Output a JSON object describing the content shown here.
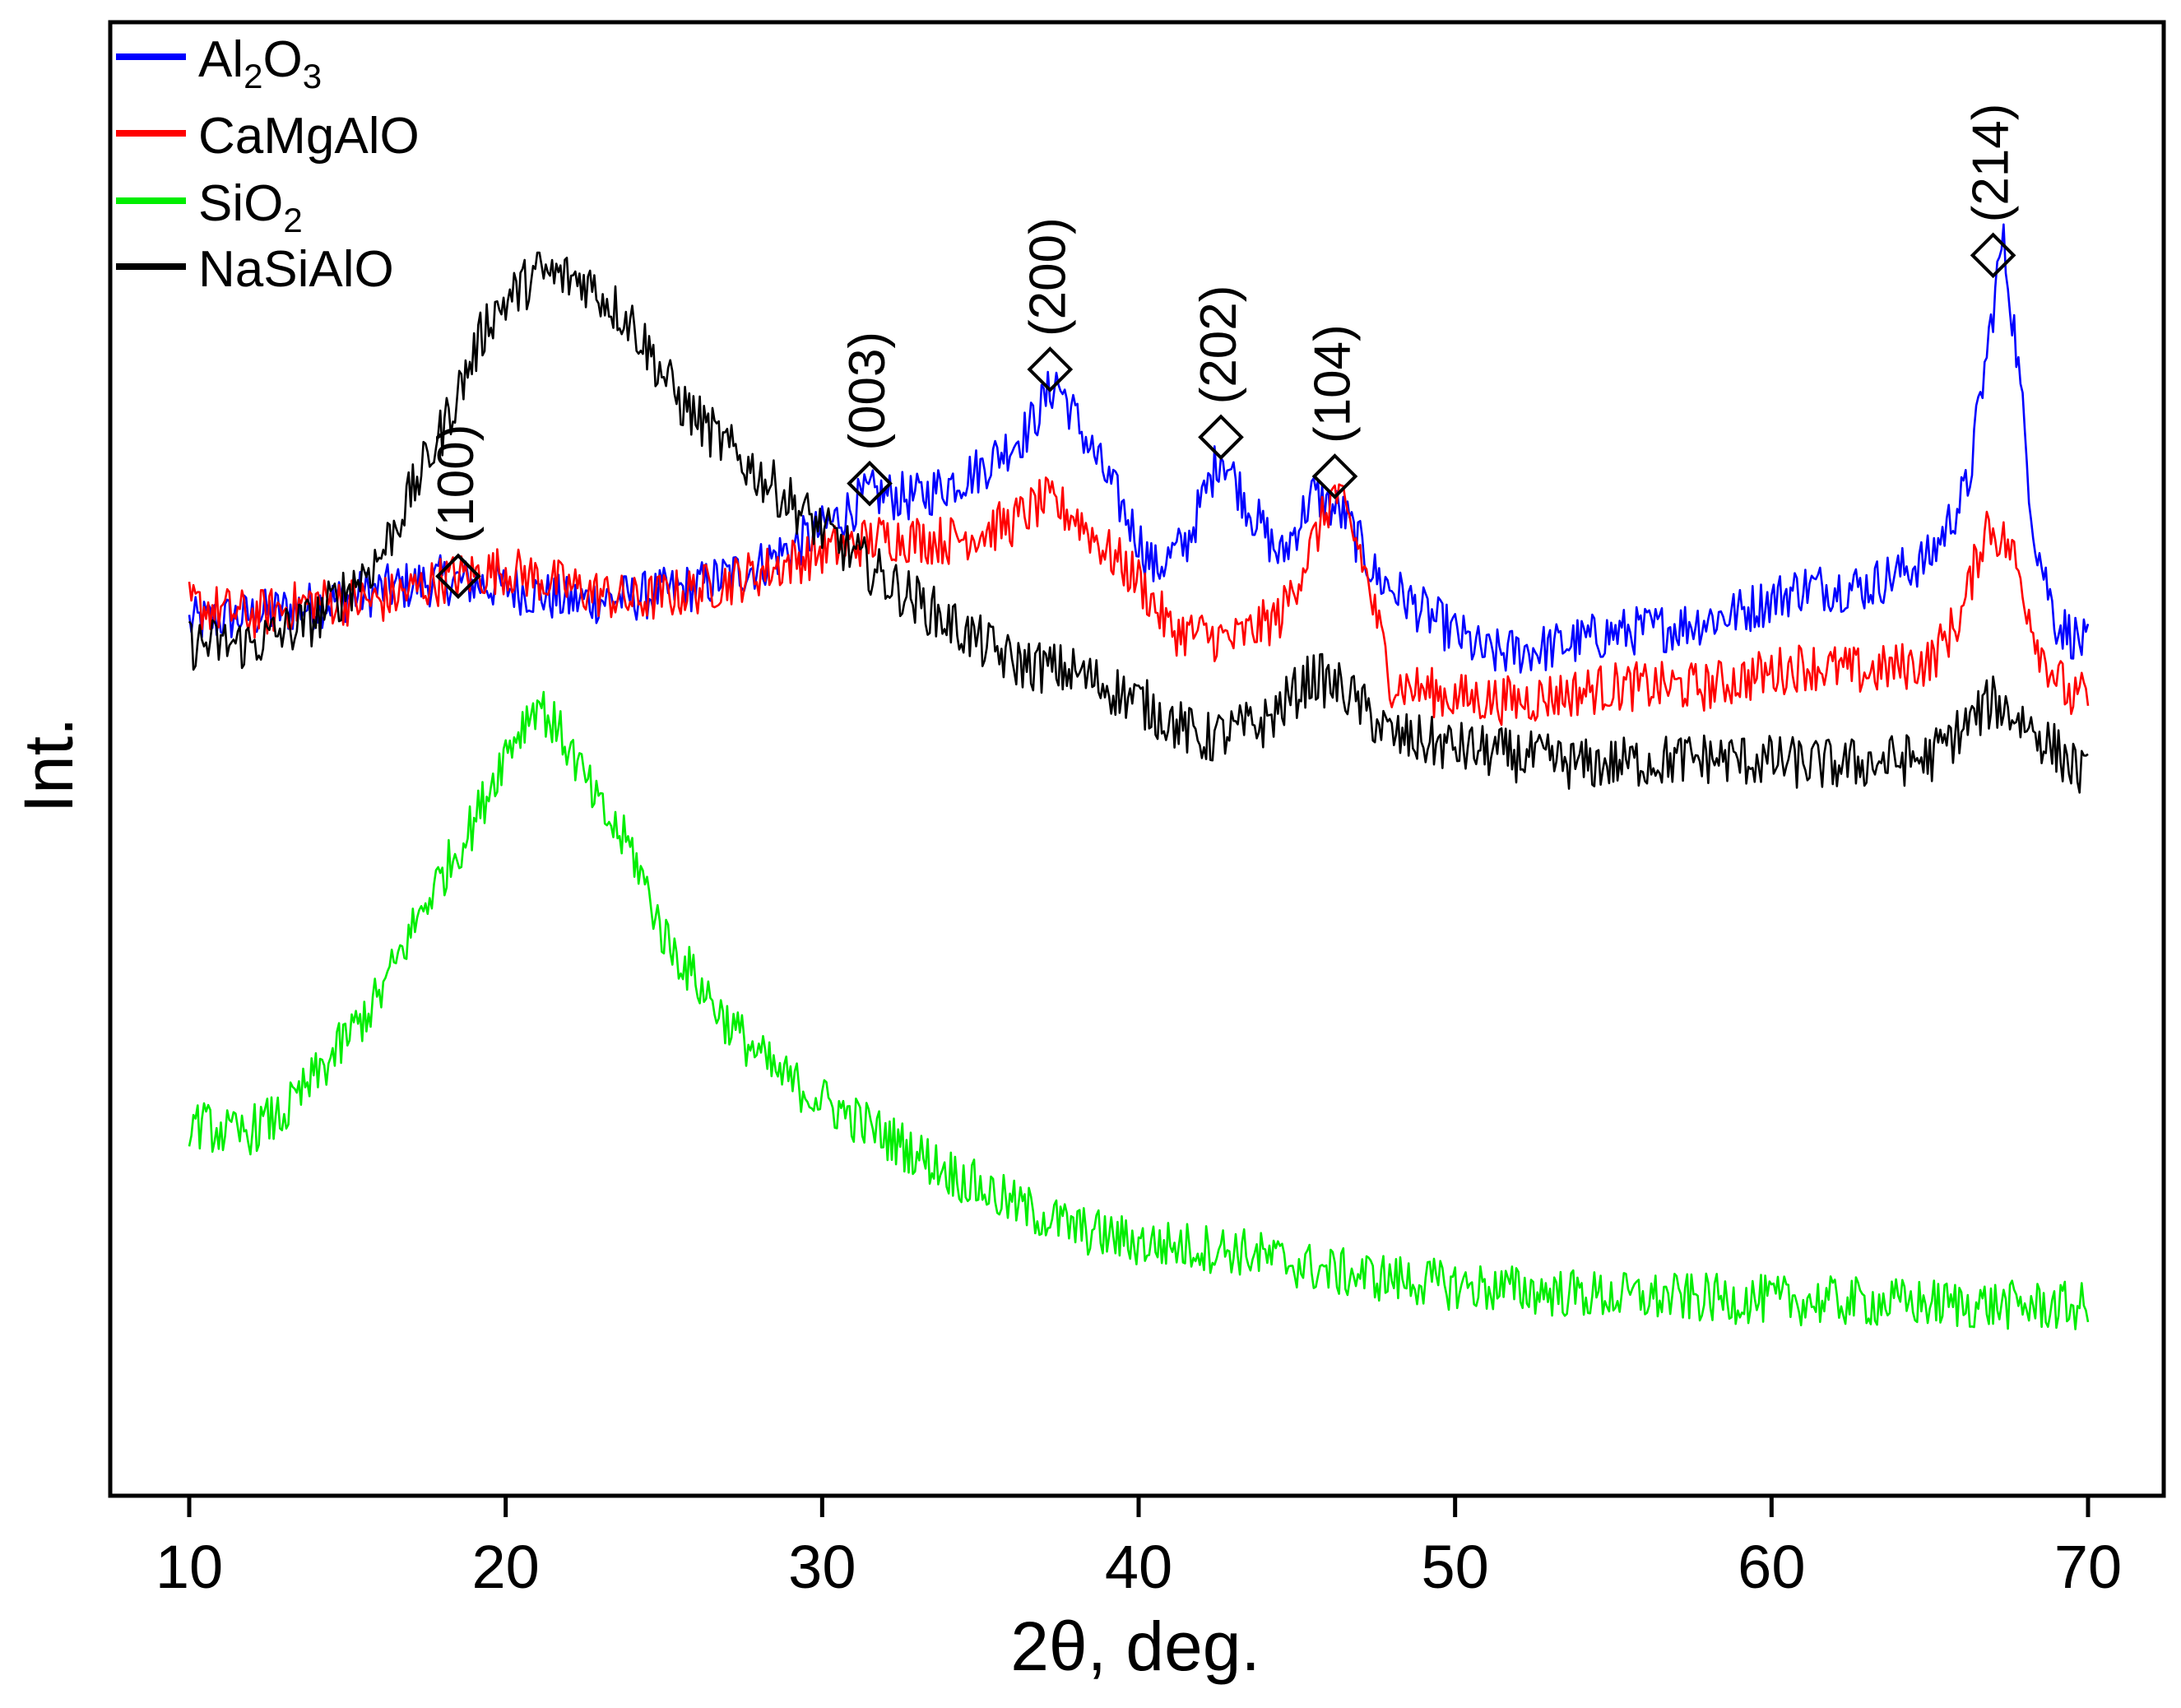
{
  "chart_data": {
    "type": "line",
    "title": "",
    "xlabel": "2θ, deg.",
    "ylabel": "Int.",
    "xlim": [
      7.5,
      71.5
    ],
    "xticks": [
      10,
      20,
      30,
      40,
      50,
      60,
      70
    ],
    "xtick_labels": [
      "10",
      "20",
      "30",
      "40",
      "50",
      "60",
      "70"
    ],
    "yticks_shown": false,
    "grid": false,
    "legend_position": "top-left",
    "y_units": "arbitrary, curves vertically offset for clarity",
    "legend": [
      {
        "main": "Al",
        "sub1": "2",
        "mid": "O",
        "sub2": "3",
        "color": "#0000ff"
      },
      {
        "main": "CaMgAlO",
        "sub1": "",
        "mid": "",
        "sub2": "",
        "color": "#ff0000"
      },
      {
        "main": "SiO",
        "sub1": "2",
        "mid": "",
        "sub2": "",
        "color": "#00ee00"
      },
      {
        "main": "NaSiAlO",
        "sub1": "",
        "mid": "",
        "sub2": "",
        "color": "#000000"
      }
    ],
    "series": [
      {
        "name": "Al2O3",
        "color": "#0000ff",
        "noise": 0.7,
        "points": [
          [
            10,
            2.0
          ],
          [
            12,
            2.2
          ],
          [
            14,
            2.5
          ],
          [
            16,
            2.9
          ],
          [
            18,
            3.2
          ],
          [
            20,
            3.0
          ],
          [
            22,
            2.6
          ],
          [
            24,
            2.7
          ],
          [
            26,
            3.0
          ],
          [
            28,
            3.6
          ],
          [
            30,
            4.6
          ],
          [
            31.5,
            5.6
          ],
          [
            33,
            5.5
          ],
          [
            35,
            6.3
          ],
          [
            36.5,
            7.4
          ],
          [
            37.4,
            8.8
          ],
          [
            38.3,
            7.2
          ],
          [
            39.5,
            5.2
          ],
          [
            40.5,
            3.5
          ],
          [
            41.5,
            4.2
          ],
          [
            42.6,
            6.8
          ],
          [
            43.5,
            5.2
          ],
          [
            44.5,
            3.8
          ],
          [
            45.5,
            5.6
          ],
          [
            46.5,
            5.0
          ],
          [
            47.5,
            3.3
          ],
          [
            49,
            2.3
          ],
          [
            51,
            1.1
          ],
          [
            53,
            1.3
          ],
          [
            55,
            1.7
          ],
          [
            57,
            1.9
          ],
          [
            59,
            2.3
          ],
          [
            61,
            3.0
          ],
          [
            63,
            3.0
          ],
          [
            65,
            3.8
          ],
          [
            66.2,
            5.8
          ],
          [
            66.8,
            9.5
          ],
          [
            67.3,
            12.8
          ],
          [
            67.7,
            10.0
          ],
          [
            68.3,
            4.5
          ],
          [
            69,
            2.0
          ],
          [
            70,
            1.3
          ]
        ]
      },
      {
        "name": "CaMgAlO",
        "color": "#ff0000",
        "noise": 0.7,
        "points": [
          [
            10,
            2.5
          ],
          [
            12,
            2.2
          ],
          [
            14,
            2.6
          ],
          [
            16,
            2.6
          ],
          [
            18,
            3.2
          ],
          [
            20,
            3.5
          ],
          [
            22,
            3.0
          ],
          [
            24,
            2.6
          ],
          [
            26,
            2.9
          ],
          [
            28,
            3.4
          ],
          [
            30,
            4.0
          ],
          [
            32,
            4.4
          ],
          [
            34,
            4.3
          ],
          [
            36,
            4.8
          ],
          [
            37,
            5.4
          ],
          [
            38,
            5.0
          ],
          [
            39,
            4.0
          ],
          [
            40,
            3.2
          ],
          [
            41,
            1.8
          ],
          [
            43,
            1.5
          ],
          [
            44.5,
            2.2
          ],
          [
            45.5,
            4.2
          ],
          [
            46.2,
            5.7
          ],
          [
            47,
            4.0
          ],
          [
            48,
            0.3
          ],
          [
            50,
            -0.1
          ],
          [
            52,
            -0.2
          ],
          [
            55,
            0.2
          ],
          [
            58,
            0.2
          ],
          [
            61,
            0.8
          ],
          [
            63,
            0.6
          ],
          [
            65,
            0.9
          ],
          [
            66,
            2.2
          ],
          [
            66.8,
            4.8
          ],
          [
            67.6,
            4.0
          ],
          [
            68.5,
            1.2
          ],
          [
            69.5,
            -0.2
          ],
          [
            70,
            0.0
          ]
        ]
      },
      {
        "name": "NaSiAlO",
        "color": "#000000",
        "noise": 0.75,
        "points": [
          [
            10,
            1.4
          ],
          [
            12,
            1.4
          ],
          [
            14,
            2.1
          ],
          [
            16,
            3.8
          ],
          [
            18,
            7.4
          ],
          [
            19.5,
            10.6
          ],
          [
            21,
            11.8
          ],
          [
            22.5,
            11.6
          ],
          [
            24,
            10.4
          ],
          [
            25.5,
            8.2
          ],
          [
            27,
            6.9
          ],
          [
            29,
            5.4
          ],
          [
            30,
            4.6
          ],
          [
            32,
            3.2
          ],
          [
            34,
            2.0
          ],
          [
            36,
            0.9
          ],
          [
            38,
            0.6
          ],
          [
            40,
            -0.2
          ],
          [
            42,
            -1.3
          ],
          [
            44,
            -0.8
          ],
          [
            45.5,
            0.5
          ],
          [
            46.5,
            0.1
          ],
          [
            48,
            -1.2
          ],
          [
            50,
            -1.5
          ],
          [
            54,
            -2.0
          ],
          [
            58,
            -1.8
          ],
          [
            62,
            -2.0
          ],
          [
            65,
            -1.8
          ],
          [
            67,
            -0.2
          ],
          [
            68,
            -0.8
          ],
          [
            70,
            -2.4
          ]
        ]
      },
      {
        "name": "SiO2",
        "color": "#00ee00",
        "noise": 0.7,
        "points": [
          [
            10,
            -12.0
          ],
          [
            11.5,
            -12.4
          ],
          [
            13,
            -11.8
          ],
          [
            14.5,
            -10.2
          ],
          [
            16,
            -8.5
          ],
          [
            17.5,
            -5.8
          ],
          [
            19,
            -3.6
          ],
          [
            20,
            -1.6
          ],
          [
            21,
            -0.2
          ],
          [
            22,
            -1.5
          ],
          [
            23,
            -3.3
          ],
          [
            24,
            -4.4
          ],
          [
            25,
            -6.8
          ],
          [
            26,
            -8.0
          ],
          [
            27,
            -9.2
          ],
          [
            28.5,
            -10.6
          ],
          [
            30,
            -11.4
          ],
          [
            32,
            -12.4
          ],
          [
            34,
            -13.4
          ],
          [
            36,
            -14.3
          ],
          [
            38,
            -15.0
          ],
          [
            40,
            -15.4
          ],
          [
            43,
            -15.6
          ],
          [
            46,
            -16.2
          ],
          [
            50,
            -16.6
          ],
          [
            55,
            -16.9
          ],
          [
            60,
            -17.0
          ],
          [
            65,
            -17.1
          ],
          [
            70,
            -17.2
          ]
        ]
      }
    ],
    "annotations": [
      {
        "label": "(100)",
        "x": 18.5,
        "y": 3.3
      },
      {
        "label": "(003)",
        "x": 31.5,
        "y": 5.9
      },
      {
        "label": "(200)",
        "x": 37.2,
        "y": 9.1
      },
      {
        "label": "(202)",
        "x": 42.6,
        "y": 7.2
      },
      {
        "label": "(104)",
        "x": 46.2,
        "y": 6.1
      },
      {
        "label": "(214)",
        "x": 67.0,
        "y": 12.3
      }
    ],
    "annotation_marker": "diamond-outline"
  }
}
